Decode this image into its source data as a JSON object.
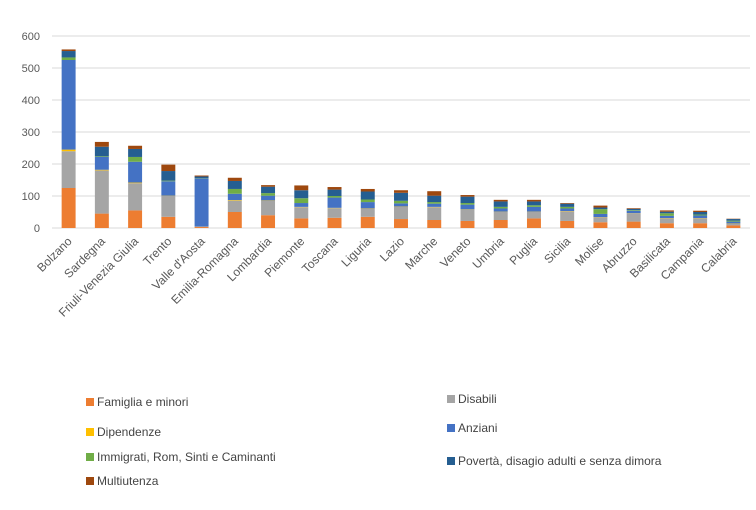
{
  "chart_data": {
    "type": "bar",
    "stacked": true,
    "categories": [
      "Bolzano",
      "Sardegna",
      "Friuli-Venezia Giulia",
      "Trento",
      "Valle d'Aosta",
      "Emilia-Romagna",
      "Lombardia",
      "Piemonte",
      "Toscana",
      "Liguria",
      "Lazio",
      "Marche",
      "Veneto",
      "Umbria",
      "Puglia",
      "Sicilia",
      "Molise",
      "Abruzzo",
      "Basilicata",
      "Campania",
      "Calabria"
    ],
    "ylim": [
      0,
      600
    ],
    "yticks": [
      0,
      100,
      200,
      300,
      400,
      500,
      600
    ],
    "grid": true,
    "legend_position": "bottom",
    "series": [
      {
        "name": "Famiglia e minori",
        "color": "#ED7D31",
        "values": [
          125,
          45,
          55,
          35,
          3,
          50,
          40,
          30,
          32,
          35,
          28,
          25,
          22,
          25,
          30,
          22,
          18,
          20,
          15,
          15,
          8
        ]
      },
      {
        "name": "Disabili",
        "color": "#A5A5A5",
        "values": [
          115,
          135,
          85,
          65,
          2,
          35,
          45,
          35,
          30,
          25,
          38,
          40,
          35,
          25,
          20,
          30,
          15,
          25,
          15,
          15,
          5
        ]
      },
      {
        "name": "Dipendenze",
        "color": "#FFC000",
        "values": [
          5,
          2,
          2,
          1,
          0,
          2,
          1,
          1,
          1,
          1,
          1,
          1,
          1,
          1,
          1,
          1,
          1,
          1,
          1,
          1,
          1
        ]
      },
      {
        "name": "Anziani",
        "color": "#4472C4",
        "values": [
          280,
          40,
          65,
          45,
          150,
          20,
          15,
          12,
          32,
          20,
          10,
          10,
          15,
          10,
          15,
          8,
          10,
          8,
          7,
          8,
          6
        ]
      },
      {
        "name": "Immigrati, Rom, Sinti e Caminanti",
        "color": "#70AD47",
        "values": [
          8,
          2,
          15,
          2,
          1,
          15,
          8,
          15,
          5,
          8,
          8,
          5,
          5,
          5,
          5,
          5,
          15,
          2,
          8,
          3,
          3
        ]
      },
      {
        "name": "Povertà, disagio adulti e senza dimora",
        "color": "#255E91",
        "values": [
          20,
          30,
          25,
          30,
          5,
          25,
          20,
          25,
          20,
          25,
          25,
          20,
          20,
          17,
          12,
          10,
          5,
          4,
          5,
          8,
          5
        ]
      },
      {
        "name": "Multiutenza",
        "color": "#9E480E",
        "values": [
          5,
          15,
          10,
          20,
          3,
          10,
          5,
          15,
          8,
          8,
          8,
          14,
          5,
          5,
          5,
          2,
          6,
          2,
          4,
          4,
          1
        ]
      }
    ]
  }
}
